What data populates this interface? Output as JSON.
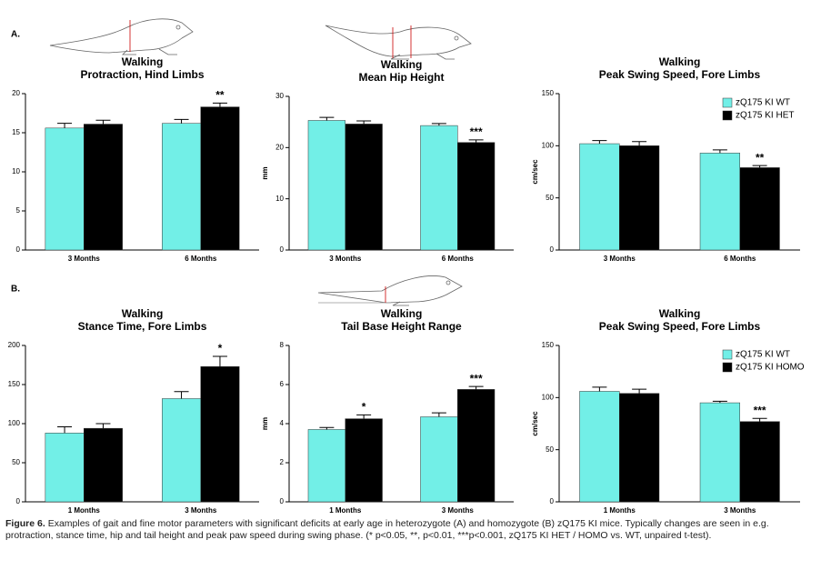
{
  "panels": [
    {
      "label": "A."
    },
    {
      "label": "B."
    }
  ],
  "caption": {
    "label": "Figure 6.",
    "text": "Examples of gait and fine motor parameters with significant deficits at early age in heterozygote (A) and homozygote (B) zQ175 KI mice. Typically changes are seen in e.g. protraction, stance time, hip and tail height and peak paw speed during swing phase. (* p<0.05, **, p<0.01, ***p<0.001, zQ175 KI HET / HOMO vs. WT, unpaired t-test)."
  },
  "chart_data": [
    {
      "type": "bar",
      "title": "Walking",
      "subtitle": "Protraction, Hind Limbs",
      "categories": [
        "3 Months",
        "6 Months"
      ],
      "series": [
        {
          "color": "#72efe7",
          "values": [
            15.6,
            16.2
          ],
          "errors": [
            0.6,
            0.5
          ]
        },
        {
          "color": "#000000",
          "values": [
            16.1,
            18.3
          ],
          "errors": [
            0.5,
            0.5
          ],
          "annotations": [
            null,
            "**"
          ]
        }
      ],
      "ylim": [
        0,
        20
      ],
      "yticks": [
        0,
        5,
        10,
        15,
        20
      ]
    },
    {
      "type": "bar",
      "title": "Walking",
      "subtitle": "Mean Hip Height",
      "ylabel": "mm",
      "categories": [
        "3 Months",
        "6 Months"
      ],
      "series": [
        {
          "color": "#72efe7",
          "values": [
            25.3,
            24.3
          ],
          "errors": [
            0.6,
            0.4
          ]
        },
        {
          "color": "#000000",
          "values": [
            24.6,
            21.0
          ],
          "errors": [
            0.6,
            0.5
          ],
          "annotations": [
            null,
            "***"
          ]
        }
      ],
      "ylim": [
        0,
        30
      ],
      "yticks": [
        0,
        10,
        20,
        30
      ]
    },
    {
      "type": "bar",
      "title": "Walking",
      "subtitle": "Peak Swing Speed, Fore Limbs",
      "ylabel": "cm/sec",
      "categories": [
        "3 Months",
        "6 Months"
      ],
      "series": [
        {
          "name": "zQ175 KI WT",
          "color": "#72efe7",
          "values": [
            102,
            93
          ],
          "errors": [
            3,
            3
          ]
        },
        {
          "name": "zQ175 KI HET",
          "color": "#000000",
          "values": [
            100,
            79
          ],
          "errors": [
            4,
            2
          ],
          "annotations": [
            null,
            "**"
          ]
        }
      ],
      "ylim": [
        0,
        150
      ],
      "yticks": [
        0,
        50,
        100,
        150
      ],
      "legend": "upper right"
    },
    {
      "type": "bar",
      "title": "Walking",
      "subtitle": "Stance Time, Fore Limbs",
      "categories": [
        "1 Months",
        "3 Months"
      ],
      "series": [
        {
          "color": "#72efe7",
          "values": [
            88,
            132
          ],
          "errors": [
            8,
            9
          ]
        },
        {
          "color": "#000000",
          "values": [
            94,
            173
          ],
          "errors": [
            6,
            13
          ],
          "annotations": [
            null,
            "*"
          ]
        }
      ],
      "ylim": [
        0,
        200
      ],
      "yticks": [
        0,
        50,
        100,
        150,
        200
      ]
    },
    {
      "type": "bar",
      "title": "Walking",
      "subtitle": "Tail Base Height Range",
      "ylabel": "mm",
      "categories": [
        "1 Months",
        "3 Months"
      ],
      "series": [
        {
          "color": "#72efe7",
          "values": [
            3.7,
            4.35
          ],
          "errors": [
            0.1,
            0.2
          ]
        },
        {
          "color": "#000000",
          "values": [
            4.25,
            5.75
          ],
          "errors": [
            0.2,
            0.15
          ],
          "annotations": [
            "*",
            "***"
          ]
        }
      ],
      "ylim": [
        0,
        8
      ],
      "yticks": [
        0,
        2,
        4,
        6,
        8
      ]
    },
    {
      "type": "bar",
      "title": "Walking",
      "subtitle": "Peak Swing Speed, Fore Limbs",
      "ylabel": "cm/sec",
      "categories": [
        "1 Months",
        "3 Months"
      ],
      "series": [
        {
          "name": "zQ175 KI WT",
          "color": "#72efe7",
          "values": [
            106,
            95
          ],
          "errors": [
            4,
            1.5
          ]
        },
        {
          "name": "zQ175 KI HOMO",
          "color": "#000000",
          "values": [
            104,
            77
          ],
          "errors": [
            4,
            3
          ],
          "annotations": [
            null,
            "***"
          ]
        }
      ],
      "ylim": [
        0,
        150
      ],
      "yticks": [
        0,
        50,
        100,
        150
      ],
      "legend": "upper right"
    }
  ]
}
